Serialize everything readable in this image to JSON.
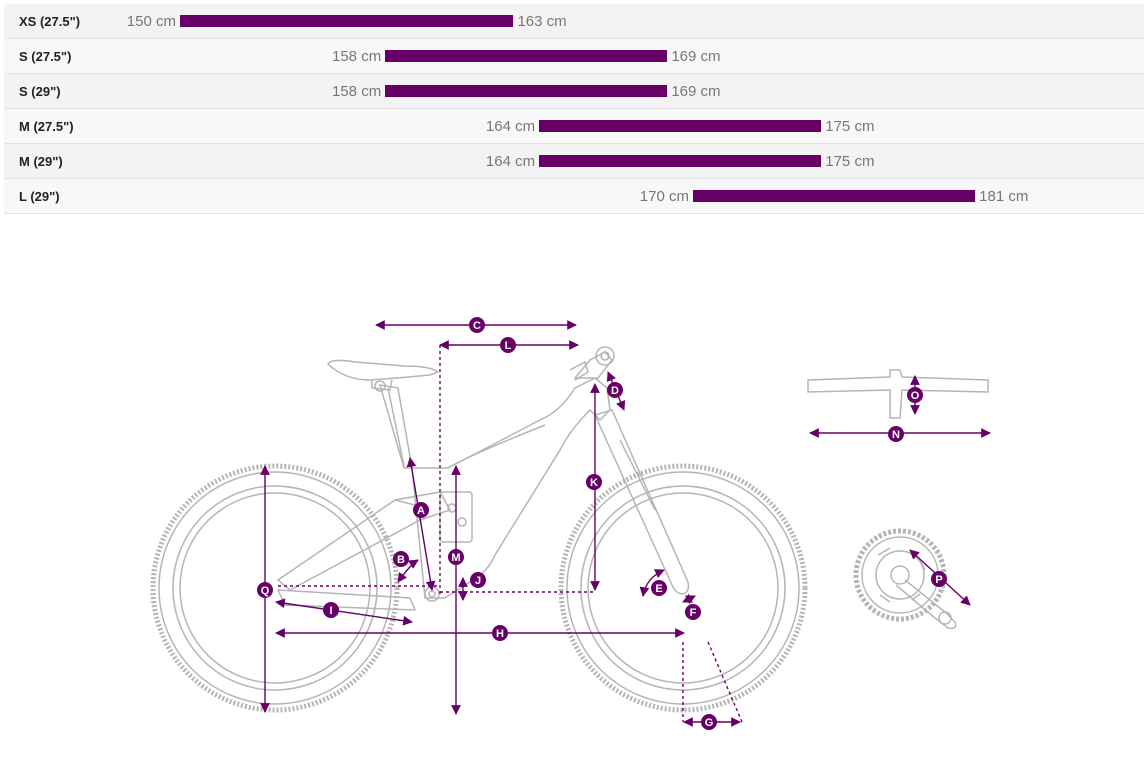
{
  "size_table": {
    "rows": [
      {
        "size": "XS (27.5\")",
        "min": 150,
        "max": 163,
        "min_label": "150 cm",
        "max_label": "163 cm"
      },
      {
        "size": "S (27.5\")",
        "min": 158,
        "max": 169,
        "min_label": "158 cm",
        "max_label": "169 cm"
      },
      {
        "size": "S (29\")",
        "min": 158,
        "max": 169,
        "min_label": "158 cm",
        "max_label": "169 cm"
      },
      {
        "size": "M (27.5\")",
        "min": 164,
        "max": 175,
        "min_label": "164 cm",
        "max_label": "175 cm"
      },
      {
        "size": "M (29\")",
        "min": 164,
        "max": 175,
        "min_label": "164 cm",
        "max_label": "175 cm"
      },
      {
        "size": "L (29\")",
        "min": 170,
        "max": 181,
        "min_label": "170 cm",
        "max_label": "181 cm"
      }
    ],
    "bar_color": "#660066"
  },
  "diagram": {
    "accent_color": "#660066",
    "bike_line_color": "#b5b5b5",
    "markers": [
      "A",
      "B",
      "C",
      "D",
      "E",
      "F",
      "G",
      "H",
      "I",
      "J",
      "K",
      "L",
      "M",
      "N",
      "O",
      "P",
      "Q"
    ]
  }
}
